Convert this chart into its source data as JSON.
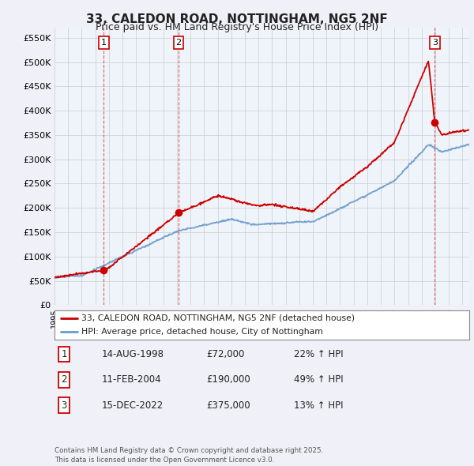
{
  "title": "33, CALEDON ROAD, NOTTINGHAM, NG5 2NF",
  "subtitle": "Price paid vs. HM Land Registry's House Price Index (HPI)",
  "background_color": "#f0f0f8",
  "plot_background": "#ffffff",
  "red_color": "#cc0000",
  "blue_color": "#6699cc",
  "shade_color": "#dde8f5",
  "ylabel_ticks": [
    "£0",
    "£50K",
    "£100K",
    "£150K",
    "£200K",
    "£250K",
    "£300K",
    "£350K",
    "£400K",
    "£450K",
    "£500K",
    "£550K"
  ],
  "ytick_values": [
    0,
    50000,
    100000,
    150000,
    200000,
    250000,
    300000,
    350000,
    400000,
    450000,
    500000,
    550000
  ],
  "sales": [
    {
      "label": "1",
      "date": "14-AUG-1998",
      "price": 72000,
      "year": 1998.62,
      "hpi_pct": "22% ↑ HPI"
    },
    {
      "label": "2",
      "date": "11-FEB-2004",
      "price": 190000,
      "year": 2004.12,
      "hpi_pct": "49% ↑ HPI"
    },
    {
      "label": "3",
      "date": "15-DEC-2022",
      "price": 375000,
      "year": 2022.96,
      "hpi_pct": "13% ↑ HPI"
    }
  ],
  "legend_entries": [
    "33, CALEDON ROAD, NOTTINGHAM, NG5 2NF (detached house)",
    "HPI: Average price, detached house, City of Nottingham"
  ],
  "footer": "Contains HM Land Registry data © Crown copyright and database right 2025.\nThis data is licensed under the Open Government Licence v3.0.",
  "xmin": 1995,
  "xmax": 2025.5,
  "ymin": 0,
  "ymax": 570000
}
